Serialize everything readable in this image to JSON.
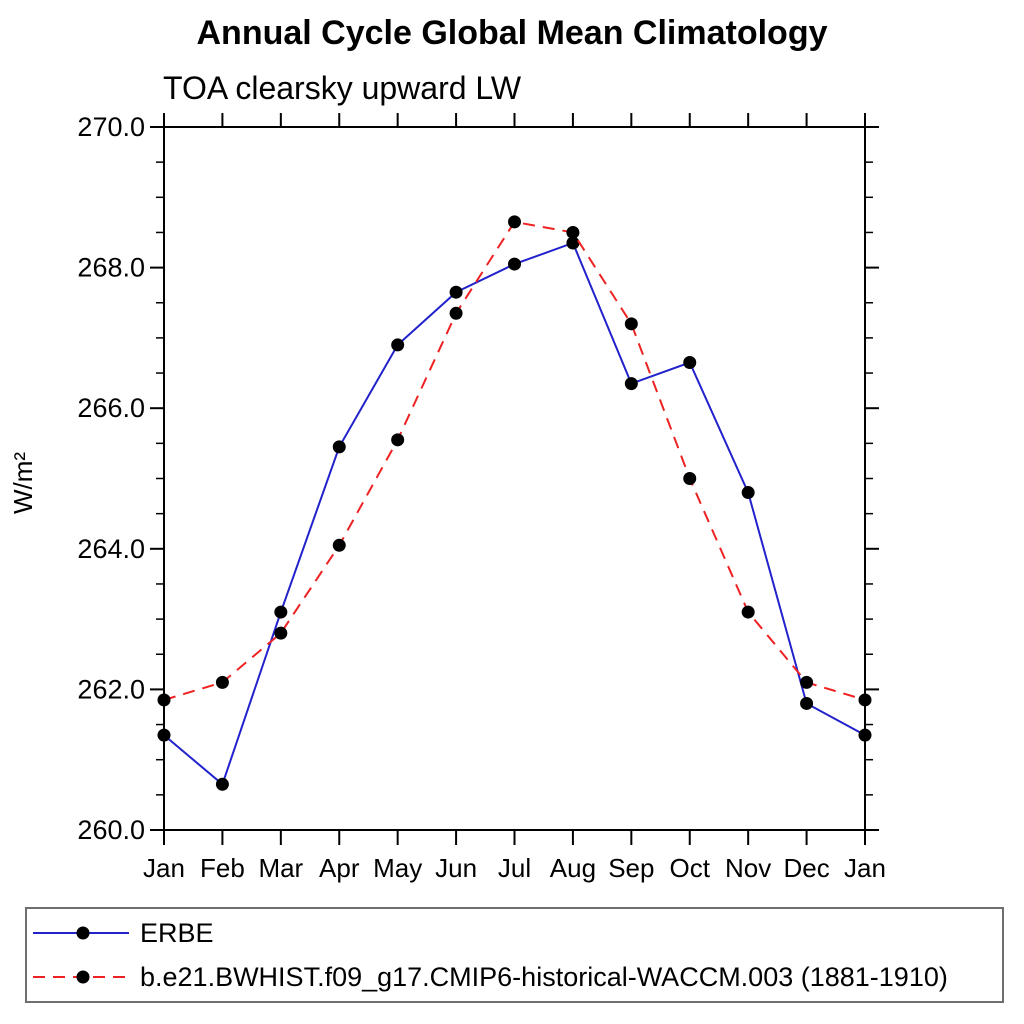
{
  "chart_data": {
    "type": "line",
    "title": "Annual Cycle Global Mean Climatology",
    "subtitle": "TOA clearsky upward LW",
    "ylabel": "W/m²",
    "xlabel": "",
    "categories": [
      "Jan",
      "Feb",
      "Mar",
      "Apr",
      "May",
      "Jun",
      "Jul",
      "Aug",
      "Sep",
      "Oct",
      "Nov",
      "Dec",
      "Jan"
    ],
    "series": [
      {
        "name": "ERBE",
        "line_style": "solid",
        "color": "#2222cc",
        "marker": "circle",
        "marker_color": "#000000",
        "values": [
          261.35,
          260.65,
          263.1,
          265.45,
          266.9,
          267.65,
          268.05,
          268.35,
          266.35,
          266.65,
          264.8,
          261.8,
          261.35
        ]
      },
      {
        "name": "b.e21.BWHIST.f09_g17.CMIP6-historical-WACCM.003 (1881-1910)",
        "line_style": "dashed",
        "color": "#ee2222",
        "marker": "circle",
        "marker_color": "#000000",
        "values": [
          261.85,
          262.1,
          262.8,
          264.05,
          265.55,
          267.35,
          268.65,
          268.5,
          267.2,
          265.0,
          263.1,
          262.1,
          261.85
        ]
      }
    ],
    "ylim": [
      260.0,
      270.0
    ],
    "ytick_major_step": 2.0,
    "ytick_minor_step": 0.5,
    "ytick_labels": [
      "260.0",
      "262.0",
      "264.0",
      "266.0",
      "268.0",
      "270.0"
    ],
    "grid": false,
    "legend_position": "bottom"
  },
  "colors": {
    "background": "#ffffff",
    "axis": "#000000",
    "tick": "#000000",
    "erbe_line": "#2222cc",
    "model_line": "#ee2222",
    "marker": "#000000",
    "legend_border": "#6e6e6e"
  }
}
